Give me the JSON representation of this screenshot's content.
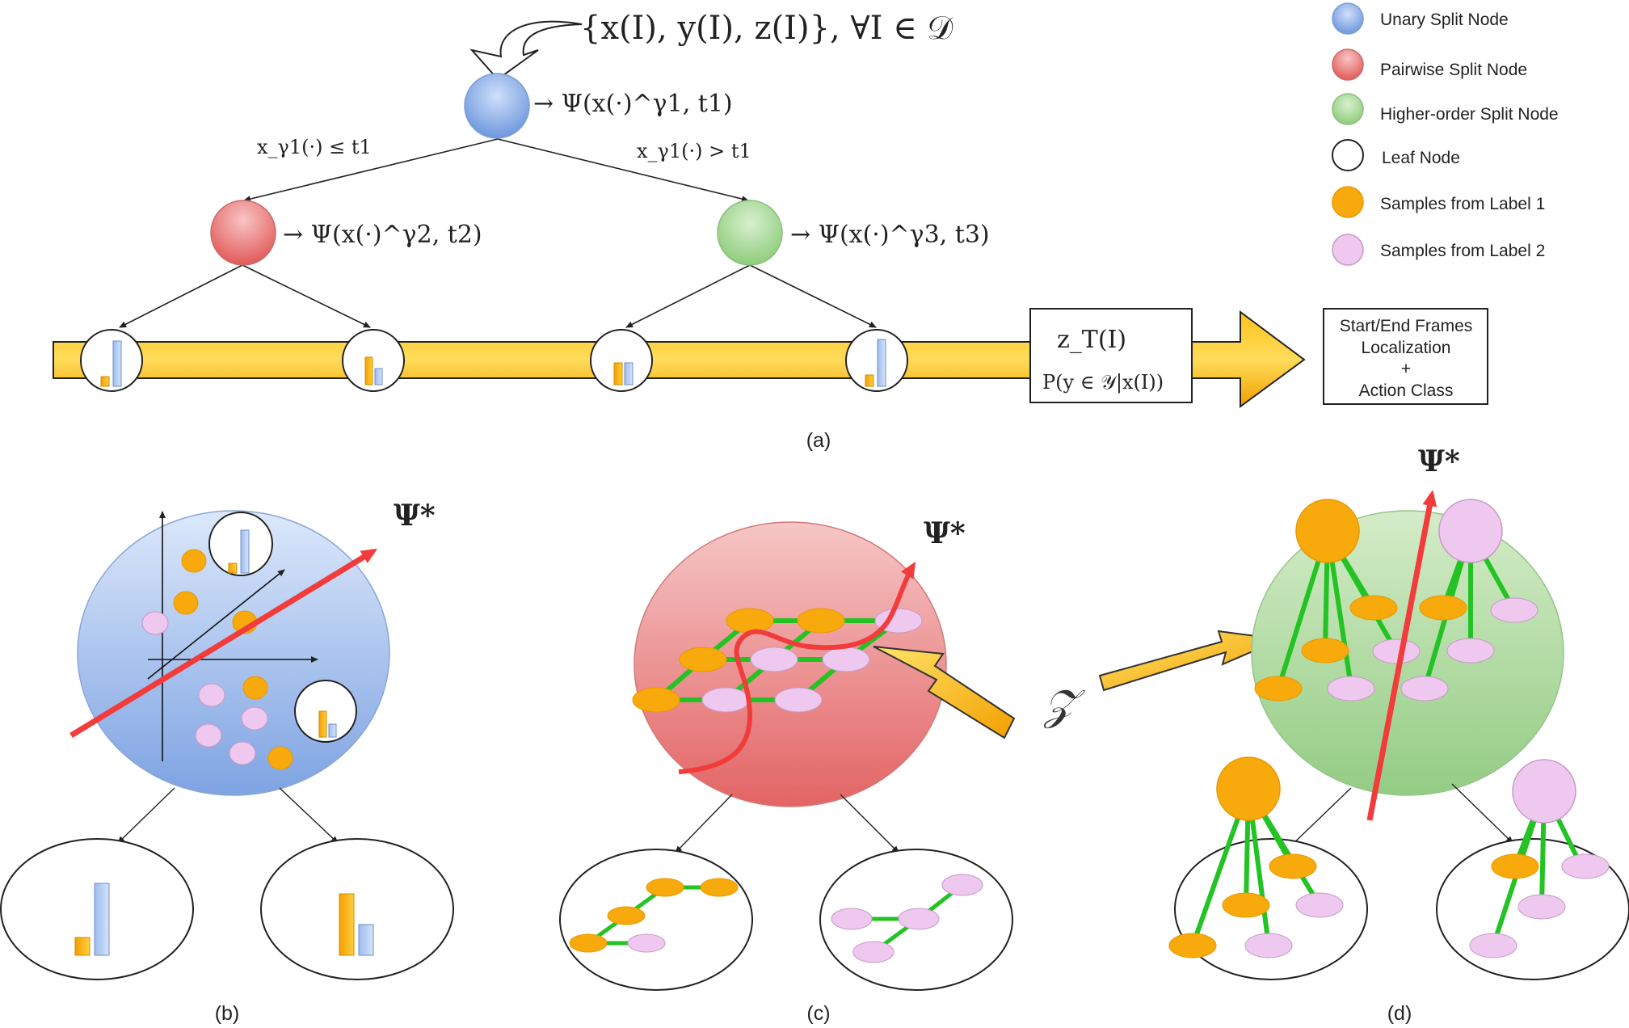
{
  "panel_a": {
    "input_formula": "{x(I), y(I), z(I)}, ∀I ∈ 𝒟",
    "root_split": "→ Ψ(x(·)^γ1, t1)",
    "left_split": "→ Ψ(x(·)^γ2, t2)",
    "right_split": "→ Ψ(x(·)^γ3, t3)",
    "branch_left": "x_γ1(·) ≤ t1",
    "branch_right": "x_γ1(·) > t1",
    "output_box": {
      "line1": "z_T(I)",
      "line2": "P(y ∈ 𝒴|x(I))"
    },
    "result_box": [
      "Start/End Frames",
      "Localization",
      "+",
      "Action Class"
    ],
    "caption": "(a)"
  },
  "legend": [
    {
      "label": "Unary Split Node",
      "kind": "unary"
    },
    {
      "label": "Pairwise Split Node",
      "kind": "pairwise"
    },
    {
      "label": "Higher-order Split Node",
      "kind": "higher"
    },
    {
      "label": "Leaf Node",
      "kind": "leaf"
    },
    {
      "label": "Samples from Label 1",
      "kind": "label1"
    },
    {
      "label": "Samples from Label 2",
      "kind": "label2"
    }
  ],
  "panel_b": {
    "psi_label": "Ψ*",
    "caption": "(b)"
  },
  "panel_c": {
    "psi_label": "Ψ*",
    "caption": "(c)"
  },
  "panel_d": {
    "psi_label": "Ψ*",
    "caption": "(d)"
  },
  "z_label": "𝒵",
  "colors": {
    "unary": "#8fb1e3",
    "pairwise": "#e87f7f",
    "higher": "#a9d79a",
    "label1": "#f8aa0c",
    "label2": "#eec8ee",
    "edge_green": "#22c322",
    "arrow_red": "#f23b3b"
  }
}
